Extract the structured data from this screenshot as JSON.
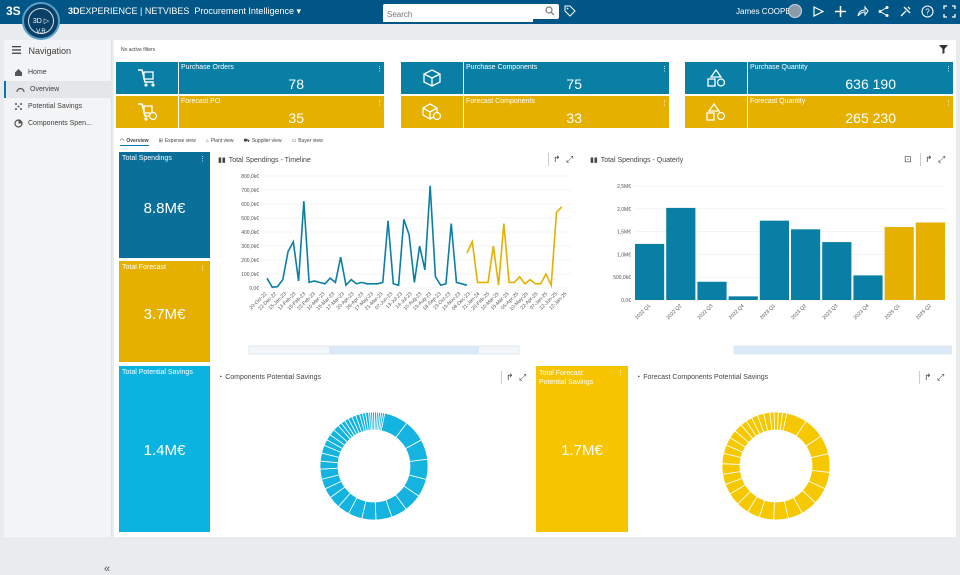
{
  "topbar": {
    "logo": "3S",
    "brand_bold": "3D",
    "brand_rest": "EXPERIENCE | NETVIBES",
    "app": "Procurement Intelligence",
    "search_placeholder": "Search",
    "user": "James COOPER",
    "compass_version": "V,R"
  },
  "nav": {
    "title": "Navigation",
    "items": [
      {
        "label": "Home",
        "icon": "home-icon"
      },
      {
        "label": "Overview",
        "icon": "gauge-icon"
      },
      {
        "label": "Potential Savings",
        "icon": "sparkle-icon"
      },
      {
        "label": "Components Spen...",
        "icon": "pie-icon"
      }
    ]
  },
  "filters_text": "No active filters",
  "kpis": [
    {
      "label": "Purchase Orders",
      "value": "78",
      "color": "#0a7fa6",
      "icon": "cart-icon"
    },
    {
      "label": "Forecast PO",
      "value": "35",
      "color": "#e6b000",
      "icon": "forecast-cart-icon"
    },
    {
      "label": "Purchase Components",
      "value": "75",
      "color": "#0a7fa6",
      "icon": "cube-icon"
    },
    {
      "label": "Forecast Components",
      "value": "33",
      "color": "#e6b000",
      "icon": "forecast-cube-icon"
    },
    {
      "label": "Purchase Quantity",
      "value": "636 190",
      "color": "#0a7fa6",
      "icon": "shapes-icon"
    },
    {
      "label": "Forecast Quantity",
      "value": "265 230",
      "color": "#e6b000",
      "icon": "forecast-shapes-icon"
    }
  ],
  "tabs": [
    "Overview",
    "Expense view",
    "Plant view",
    "Supplier view",
    "Buyer view"
  ],
  "tiles": {
    "total_spendings": {
      "label": "Total Spendings",
      "value": "8.8M€"
    },
    "total_forecast": {
      "label": "Total Forecast",
      "value": "3.7M€"
    },
    "total_potential_savings": {
      "label": "Total Potential Savings",
      "value": "1.4M€"
    },
    "total_forecast_potential_savings": {
      "label": "Total Forecast Potential Savings",
      "value": "1.7M€"
    }
  },
  "panels": {
    "timeline_title": "Total Spendings - Timeline",
    "quarterly_title": "Total Spendings - Quaterly",
    "components_savings_title": "Components Potential Savings",
    "forecast_components_savings_title": "Forecast Components Potential Savings"
  },
  "colors": {
    "blue": "#0a7fa6",
    "gold": "#e6b000",
    "dark_blue": "#005686",
    "donut_blue": "#14b3e0",
    "donut_gold": "#f6c800",
    "tile_cyan": "#0bb4e0",
    "tile_yellow": "#f7c400"
  },
  "chart_data": [
    {
      "type": "line",
      "title": "Total Spendings - Timeline",
      "ylim": [
        0,
        800000
      ],
      "yticks": [
        "0,0€",
        "100,0k€",
        "200,0k€",
        "300,0k€",
        "400,0k€",
        "500,0k€",
        "600,0k€",
        "700,0k€",
        "800,0k€"
      ],
      "x_tick_labels": [
        "20-Oct-22",
        "22-Dec-22",
        "15-Jan-23",
        "13-Feb-23",
        "15-Feb-23",
        "22-Feb-23",
        "10-Mar-23",
        "15-Mar-23",
        "17-Mar-23",
        "20-Apr-23",
        "26-Apr-23",
        "17-May-23",
        "21-Mar-23",
        "07-Jun-23",
        "13-Jul-23",
        "14-Jul-23",
        "10-Aug-23",
        "15-Aug-23",
        "18-Sep-23",
        "23-Oct-23",
        "15-Nov-23",
        "08-Dec-23",
        "21-Jan-24",
        "20-Feb-25",
        "10-Mar-25",
        "15-Mar-25",
        "05-Apr-25",
        "10-May-25",
        "22-Apr-25",
        "07-Jan-25",
        "12-Jun-25",
        "12-Jan-25"
      ],
      "series": [
        {
          "name": "",
          "color": "#0a7fa6",
          "values": [
            70000,
            5000,
            10000,
            60000,
            260000,
            330000,
            50000,
            620000,
            40000,
            50000,
            40000,
            30000,
            70000,
            40000,
            220000,
            20000,
            60000,
            30000,
            40000,
            30000,
            30000,
            30000,
            40000,
            480000,
            30000,
            20000,
            490000,
            380000,
            40000,
            300000,
            130000,
            730000,
            80000,
            20000,
            30000,
            460000,
            40000,
            30000,
            20000
          ]
        },
        {
          "name": "",
          "color": "#e6b000",
          "values": [
            250000,
            330000,
            40000,
            40000,
            40000,
            300000,
            20000,
            460000,
            40000,
            40000,
            80000,
            30000,
            60000,
            30000,
            30000,
            100000,
            20000,
            540000,
            580000
          ]
        }
      ]
    },
    {
      "type": "bar",
      "title": "Total Spendings - Quaterly",
      "ylim": [
        0,
        2500000
      ],
      "yticks": [
        "0,0€",
        "500,0k€",
        "1,0M€",
        "1,5M€",
        "2,0M€",
        "2,5M€"
      ],
      "categories": [
        "2022 Q1",
        "2022 Q2",
        "2022 Q3",
        "2022 Q4",
        "2023 Q1",
        "2023 Q2",
        "2023 Q3",
        "2023 Q4",
        "2025 Q1",
        "2025 Q2"
      ],
      "values": [
        1230000,
        2020000,
        400000,
        80000,
        1740000,
        1550000,
        1270000,
        540000,
        1600000,
        1700000
      ],
      "colors": [
        "#0a7fa6",
        "#0a7fa6",
        "#0a7fa6",
        "#0a7fa6",
        "#0a7fa6",
        "#0a7fa6",
        "#0a7fa6",
        "#0a7fa6",
        "#e6b000",
        "#e6b000"
      ]
    },
    {
      "type": "pie",
      "title": "Components Potential Savings",
      "color": "#14b3e0",
      "values": [
        12,
        11,
        10,
        10,
        9,
        9,
        8,
        8,
        7,
        7,
        6,
        6,
        5,
        5,
        5,
        4,
        4,
        4,
        3,
        3,
        3,
        3,
        2,
        2,
        2,
        2,
        2,
        2,
        1.5,
        1.5,
        1.5,
        1,
        1,
        1,
        1,
        1,
        1,
        1,
        1
      ]
    },
    {
      "type": "pie",
      "title": "Forecast Components Potential Savings",
      "color": "#f6c800",
      "values": [
        10,
        10,
        9,
        9,
        8,
        8,
        8,
        7,
        7,
        7,
        6,
        6,
        6,
        5,
        5,
        5,
        5,
        4,
        4,
        4,
        4,
        3,
        3,
        3,
        3,
        3,
        2,
        2,
        2,
        2
      ]
    }
  ]
}
